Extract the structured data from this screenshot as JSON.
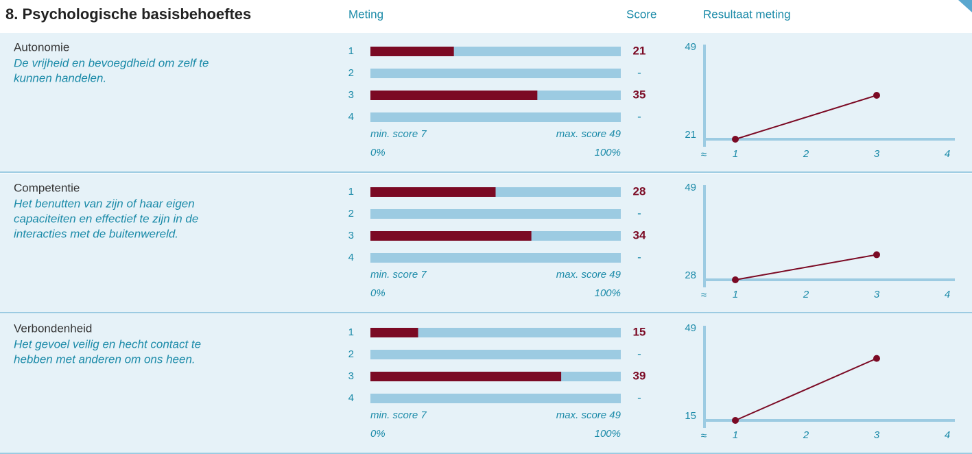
{
  "header": {
    "title": "8. Psychologische basisbehoeftes",
    "col_measure": "Meting",
    "col_score": "Score",
    "col_result": "Resultaat meting"
  },
  "sections": [
    {
      "name": "Autonomie",
      "description": [
        "De vrijheid en bevoegdheid om zelf te",
        "kunnen handelen."
      ],
      "chart_data": [
        {
          "type": "bar",
          "categories": [
            "1",
            "2",
            "3",
            "4"
          ],
          "values": [
            21,
            null,
            35,
            null
          ],
          "value_labels": [
            "21",
            "-",
            "35",
            "-"
          ],
          "xlim": [
            7,
            49
          ],
          "color": "#7b0a24",
          "track_color": "#9ccbe2",
          "min_label": "min. score 7",
          "max_label": "max. score 49",
          "start_label": "0%",
          "end_label": "100%"
        },
        {
          "type": "line",
          "x": [
            1,
            3
          ],
          "values": [
            21,
            35
          ],
          "color": "#7b0a24",
          "xlim": [
            1,
            4
          ],
          "xticks": [
            1,
            2,
            3,
            4
          ],
          "ylim": [
            21,
            49
          ],
          "yticks": [
            21,
            49
          ],
          "break_label": "≈"
        }
      ]
    },
    {
      "name": "Competentie",
      "description": [
        "Het benutten van zijn of haar eigen",
        "capaciteiten en effectief te zijn in de",
        "interacties met de buitenwereld."
      ],
      "chart_data": [
        {
          "type": "bar",
          "categories": [
            "1",
            "2",
            "3",
            "4"
          ],
          "values": [
            28,
            null,
            34,
            null
          ],
          "value_labels": [
            "28",
            "-",
            "34",
            "-"
          ],
          "xlim": [
            7,
            49
          ],
          "color": "#7b0a24",
          "track_color": "#9ccbe2",
          "min_label": "min. score 7",
          "max_label": "max. score 49",
          "start_label": "0%",
          "end_label": "100%"
        },
        {
          "type": "line",
          "x": [
            1,
            3
          ],
          "values": [
            28,
            34
          ],
          "color": "#7b0a24",
          "xlim": [
            1,
            4
          ],
          "xticks": [
            1,
            2,
            3,
            4
          ],
          "ylim": [
            28,
            49
          ],
          "yticks": [
            28,
            49
          ],
          "break_label": "≈"
        }
      ]
    },
    {
      "name": "Verbondenheid",
      "description": [
        "Het gevoel veilig en hecht contact te",
        "hebben met anderen om ons heen."
      ],
      "chart_data": [
        {
          "type": "bar",
          "categories": [
            "1",
            "2",
            "3",
            "4"
          ],
          "values": [
            15,
            null,
            39,
            null
          ],
          "value_labels": [
            "15",
            "-",
            "39",
            "-"
          ],
          "xlim": [
            7,
            49
          ],
          "color": "#7b0a24",
          "track_color": "#9ccbe2",
          "min_label": "min. score 7",
          "max_label": "max. score 49",
          "start_label": "0%",
          "end_label": "100%"
        },
        {
          "type": "line",
          "x": [
            1,
            3
          ],
          "values": [
            15,
            39
          ],
          "color": "#7b0a24",
          "xlim": [
            1,
            4
          ],
          "xticks": [
            1,
            2,
            3,
            4
          ],
          "ylim": [
            15,
            49
          ],
          "yticks": [
            15,
            49
          ],
          "break_label": "≈"
        }
      ]
    }
  ]
}
